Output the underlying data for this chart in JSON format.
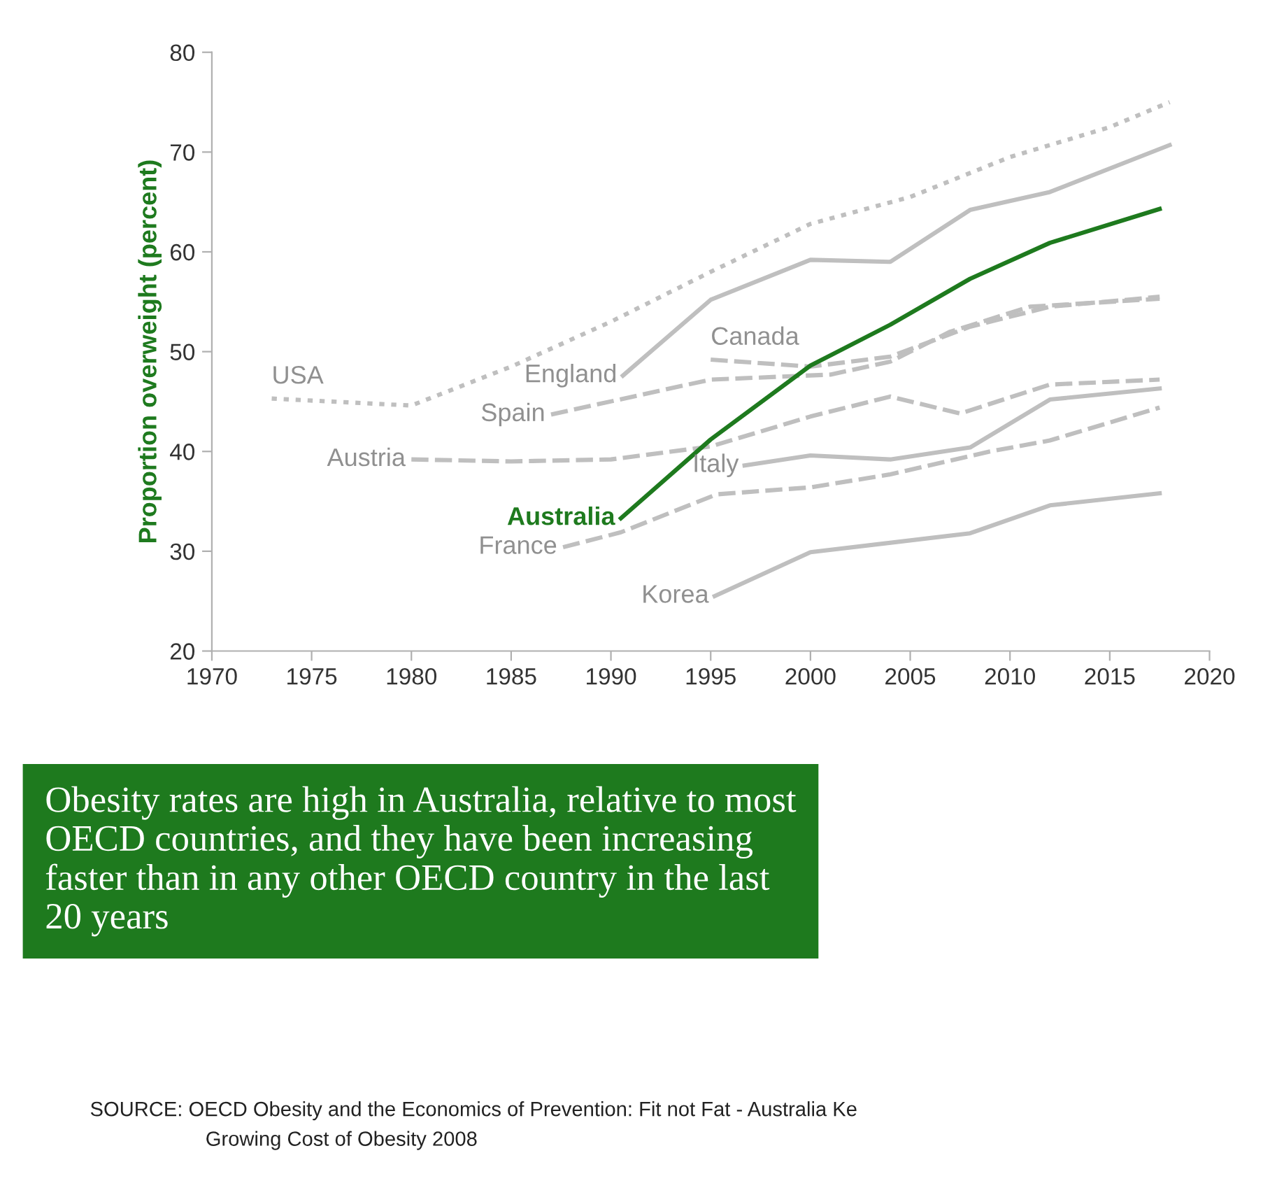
{
  "chart_data": {
    "type": "line",
    "ylabel": "Proportion overweight (percent)",
    "xlim": [
      1970,
      2020
    ],
    "xticks": [
      1970,
      1975,
      1980,
      1985,
      1990,
      1995,
      2000,
      2005,
      2010,
      2015,
      2020
    ],
    "ylim": [
      20,
      80
    ],
    "yticks": [
      20,
      30,
      40,
      50,
      60,
      70,
      80
    ],
    "grid": false,
    "legend": false,
    "marker": "none",
    "series": [
      {
        "name": "USA",
        "color": "#bfbfbf",
        "line_style": "dotted",
        "x": [
          1973,
          1980,
          1985,
          1990,
          1995,
          2000,
          2005,
          2010,
          2015,
          2018
        ],
        "values": [
          45.3,
          44.6,
          48.5,
          53,
          58,
          62.8,
          65.5,
          69.5,
          72.5,
          75
        ]
      },
      {
        "name": "England",
        "color": "#bfbfbf",
        "line_style": "solid",
        "x": [
          1990.6,
          1995,
          2000,
          2004,
          2008,
          2012,
          2018
        ],
        "values": [
          47.6,
          55.2,
          59.2,
          59,
          64.2,
          66,
          70.7
        ]
      },
      {
        "name": "Canada",
        "color": "#bfbfbf",
        "line_style": "dashed",
        "x": [
          1995,
          2000,
          2004,
          2008,
          2012,
          2017.5
        ],
        "values": [
          49.2,
          48.5,
          49.5,
          52.5,
          54.5,
          55.5
        ]
      },
      {
        "name": "Spain",
        "color": "#bfbfbf",
        "line_style": "dashed",
        "x": [
          1987,
          1995,
          2001,
          2004,
          2007,
          2011,
          2017.5
        ],
        "values": [
          43.7,
          47.2,
          47.7,
          49,
          52,
          54.5,
          55.3
        ]
      },
      {
        "name": "Austria",
        "color": "#bfbfbf",
        "line_style": "dashed",
        "x": [
          1980,
          1985,
          1990,
          1995,
          2000,
          2004,
          2007.5,
          2012,
          2017.5
        ],
        "values": [
          39.2,
          39,
          39.2,
          40.5,
          43.5,
          45.5,
          43.8,
          46.7,
          47.2
        ]
      },
      {
        "name": "Australia",
        "color": "#1e7a1e",
        "line_style": "solid",
        "x": [
          1990.5,
          1995,
          2000,
          2004,
          2008,
          2012,
          2017.5
        ],
        "values": [
          33.3,
          41.2,
          48.6,
          52.7,
          57.3,
          60.9,
          64.3
        ]
      },
      {
        "name": "Italy",
        "color": "#bfbfbf",
        "line_style": "solid",
        "x": [
          1996.7,
          2000,
          2004,
          2008,
          2012,
          2017.5
        ],
        "values": [
          38.6,
          39.6,
          39.2,
          40.4,
          45.2,
          46.3
        ]
      },
      {
        "name": "France",
        "color": "#bfbfbf",
        "line_style": "dashed",
        "x": [
          1987.6,
          1990.5,
          1995.3,
          2000,
          2004,
          2009,
          2012,
          2017.5
        ],
        "values": [
          30.4,
          31.9,
          35.7,
          36.4,
          37.7,
          40,
          41.1,
          44.4
        ]
      },
      {
        "name": "Korea",
        "color": "#bfbfbf",
        "line_style": "solid",
        "x": [
          1995.2,
          2000,
          2008,
          2012,
          2017.5
        ],
        "values": [
          25.5,
          29.9,
          31.8,
          34.6,
          35.8
        ]
      }
    ],
    "annotations": [
      "Obesity rates are high in Australia, relative to most\nOECD countries, and they have been increasing\nfaster than in any other OECD country in the last\n20 years",
      "SOURCE: OECD Obesity and the Economics of Prevention: Fit not Fat - Australia Ke",
      "Growing Cost of Obesity 2008"
    ]
  }
}
